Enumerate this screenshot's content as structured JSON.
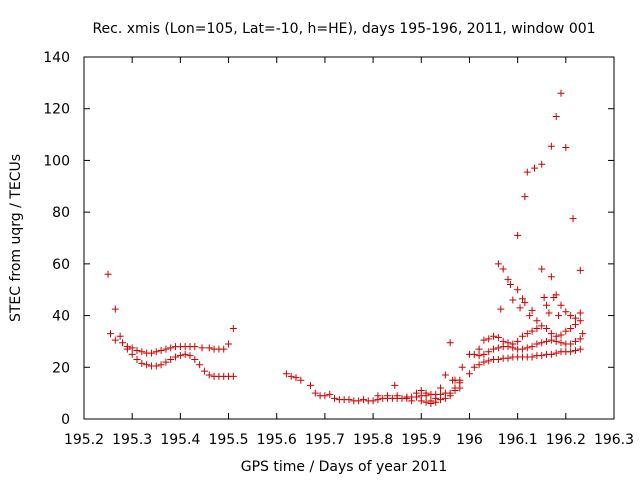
{
  "chart_data": {
    "type": "scatter",
    "title": "Rec. xmis (Lon=105, Lat=-10, h=HE), days 195-196, 2011, window 001",
    "xlabel": "GPS time / Days of year 2011",
    "ylabel": "STEC from uqrg / TECUs",
    "xlim": [
      195.2,
      196.3
    ],
    "ylim": [
      0,
      140
    ],
    "x_ticks": [
      "195.2",
      "195.3",
      "195.4",
      "195.5",
      "195.6",
      "195.7",
      "195.8",
      "195.9",
      "196",
      "196.1",
      "196.2",
      "196.3"
    ],
    "y_ticks": [
      "0",
      "20",
      "40",
      "60",
      "80",
      "100",
      "120",
      "140"
    ],
    "grid": false,
    "marker": "+",
    "color": "#cc0000",
    "series": [
      {
        "points": [
          [
            195.25,
            56
          ],
          [
            195.265,
            42.5
          ],
          [
            195.255,
            33
          ],
          [
            195.265,
            30.5
          ],
          [
            195.275,
            32
          ],
          [
            195.28,
            29.5
          ],
          [
            195.29,
            27
          ],
          [
            195.3,
            27.5
          ],
          [
            195.31,
            26.5
          ],
          [
            195.32,
            26
          ],
          [
            195.33,
            25.5
          ],
          [
            195.34,
            25.5
          ],
          [
            195.35,
            26
          ],
          [
            195.36,
            26.5
          ],
          [
            195.37,
            27
          ],
          [
            195.38,
            27.5
          ],
          [
            195.39,
            28
          ],
          [
            195.4,
            28
          ],
          [
            195.41,
            28
          ],
          [
            195.42,
            28
          ],
          [
            195.43,
            28
          ],
          [
            195.445,
            27.5
          ],
          [
            195.46,
            27.5
          ],
          [
            195.47,
            27
          ],
          [
            195.48,
            27
          ],
          [
            195.49,
            27
          ],
          [
            195.5,
            29
          ],
          [
            195.51,
            35
          ],
          [
            195.29,
            28
          ],
          [
            195.3,
            25
          ],
          [
            195.31,
            23
          ],
          [
            195.32,
            21.5
          ],
          [
            195.33,
            21
          ],
          [
            195.34,
            20.5
          ],
          [
            195.35,
            20.5
          ],
          [
            195.36,
            21
          ],
          [
            195.37,
            22
          ],
          [
            195.38,
            23
          ],
          [
            195.39,
            24
          ],
          [
            195.4,
            24.5
          ],
          [
            195.41,
            25
          ],
          [
            195.42,
            24.5
          ],
          [
            195.43,
            23
          ],
          [
            195.44,
            21
          ],
          [
            195.45,
            18.5
          ],
          [
            195.46,
            17
          ],
          [
            195.47,
            16.5
          ],
          [
            195.48,
            16.5
          ],
          [
            195.49,
            16.5
          ],
          [
            195.5,
            16.5
          ],
          [
            195.51,
            16.5
          ],
          [
            195.62,
            17.5
          ],
          [
            195.63,
            16.5
          ],
          [
            195.64,
            16
          ],
          [
            195.65,
            15
          ],
          [
            195.67,
            13
          ],
          [
            195.68,
            10
          ],
          [
            195.69,
            9
          ],
          [
            195.7,
            9
          ],
          [
            195.71,
            9.5
          ],
          [
            195.72,
            8
          ],
          [
            195.73,
            7.5
          ],
          [
            195.74,
            7.5
          ],
          [
            195.75,
            7.5
          ],
          [
            195.76,
            7
          ],
          [
            195.77,
            7
          ],
          [
            195.78,
            7.5
          ],
          [
            195.79,
            7
          ],
          [
            195.8,
            7
          ],
          [
            195.81,
            7.5
          ],
          [
            195.82,
            8
          ],
          [
            195.83,
            8
          ],
          [
            195.84,
            8
          ],
          [
            195.85,
            8
          ],
          [
            195.86,
            8
          ],
          [
            195.87,
            8.5
          ],
          [
            195.88,
            8.5
          ],
          [
            195.89,
            8.5
          ],
          [
            195.9,
            9
          ],
          [
            195.91,
            9
          ],
          [
            195.92,
            9.5
          ],
          [
            195.93,
            9.5
          ],
          [
            195.94,
            9.5
          ],
          [
            195.95,
            10
          ],
          [
            195.96,
            10
          ],
          [
            195.97,
            11
          ],
          [
            195.98,
            12
          ],
          [
            195.81,
            9
          ],
          [
            195.83,
            9
          ],
          [
            195.845,
            13
          ],
          [
            195.85,
            9
          ],
          [
            195.87,
            8
          ],
          [
            195.88,
            7
          ],
          [
            195.9,
            7
          ],
          [
            195.91,
            6.5
          ],
          [
            195.92,
            7
          ],
          [
            195.93,
            8
          ],
          [
            195.94,
            12
          ],
          [
            195.95,
            17
          ],
          [
            195.96,
            29.5
          ],
          [
            195.965,
            15
          ],
          [
            195.97,
            15
          ],
          [
            195.98,
            15
          ],
          [
            195.985,
            20
          ],
          [
            195.89,
            10
          ],
          [
            195.9,
            11
          ],
          [
            195.91,
            10
          ],
          [
            195.92,
            6
          ],
          [
            195.93,
            6.5
          ],
          [
            195.94,
            7.5
          ],
          [
            195.95,
            8
          ],
          [
            195.96,
            9
          ],
          [
            195.97,
            12
          ],
          [
            195.98,
            14
          ],
          [
            196.0,
            17.5
          ],
          [
            196.01,
            20
          ],
          [
            196.02,
            21
          ],
          [
            196.03,
            22
          ],
          [
            196.04,
            22.5
          ],
          [
            196.05,
            23
          ],
          [
            196.06,
            23
          ],
          [
            196.07,
            23.5
          ],
          [
            196.08,
            23.5
          ],
          [
            196.09,
            24
          ],
          [
            196.1,
            24
          ],
          [
            196.11,
            24
          ],
          [
            196.12,
            24
          ],
          [
            196.13,
            24
          ],
          [
            196.14,
            24.5
          ],
          [
            196.15,
            24.5
          ],
          [
            196.16,
            25
          ],
          [
            196.17,
            25
          ],
          [
            196.18,
            25.5
          ],
          [
            196.19,
            26
          ],
          [
            196.2,
            26
          ],
          [
            196.21,
            26
          ],
          [
            196.22,
            26.5
          ],
          [
            196.23,
            27
          ],
          [
            196.0,
            25
          ],
          [
            196.01,
            25
          ],
          [
            196.02,
            24.5
          ],
          [
            196.03,
            25
          ],
          [
            196.04,
            26
          ],
          [
            196.05,
            27
          ],
          [
            196.06,
            27.5
          ],
          [
            196.07,
            28
          ],
          [
            196.08,
            28
          ],
          [
            196.09,
            27.5
          ],
          [
            196.1,
            27
          ],
          [
            196.11,
            27
          ],
          [
            196.12,
            27.5
          ],
          [
            196.13,
            28
          ],
          [
            196.14,
            29
          ],
          [
            196.15,
            29.5
          ],
          [
            196.16,
            30
          ],
          [
            196.17,
            30.5
          ],
          [
            196.18,
            30
          ],
          [
            196.19,
            29.5
          ],
          [
            196.2,
            29
          ],
          [
            196.21,
            29
          ],
          [
            196.22,
            30
          ],
          [
            196.23,
            31
          ],
          [
            196.02,
            27
          ],
          [
            196.03,
            30.5
          ],
          [
            196.04,
            31
          ],
          [
            196.05,
            32
          ],
          [
            196.06,
            31.5
          ],
          [
            196.07,
            30
          ],
          [
            196.08,
            29.5
          ],
          [
            196.09,
            29
          ],
          [
            196.1,
            30
          ],
          [
            196.11,
            32
          ],
          [
            196.12,
            33
          ],
          [
            196.13,
            34
          ],
          [
            196.14,
            35
          ],
          [
            196.15,
            36
          ],
          [
            196.16,
            35
          ],
          [
            196.17,
            33
          ],
          [
            196.18,
            32
          ],
          [
            196.19,
            32.5
          ],
          [
            196.2,
            34
          ],
          [
            196.21,
            35
          ],
          [
            196.22,
            36.5
          ],
          [
            196.23,
            38
          ],
          [
            196.06,
            60
          ],
          [
            196.065,
            42.5
          ],
          [
            196.07,
            58
          ],
          [
            196.08,
            54
          ],
          [
            196.085,
            52
          ],
          [
            196.09,
            46
          ],
          [
            196.1,
            71
          ],
          [
            196.1,
            50
          ],
          [
            196.105,
            43
          ],
          [
            196.11,
            46.5
          ],
          [
            196.115,
            86
          ],
          [
            196.115,
            45
          ],
          [
            196.12,
            95.5
          ],
          [
            196.125,
            40
          ],
          [
            196.13,
            42
          ],
          [
            196.135,
            97
          ],
          [
            196.14,
            38
          ],
          [
            196.15,
            98.5
          ],
          [
            196.15,
            58
          ],
          [
            196.155,
            47
          ],
          [
            196.16,
            44
          ],
          [
            196.165,
            41
          ],
          [
            196.17,
            105.5
          ],
          [
            196.17,
            55
          ],
          [
            196.175,
            47
          ],
          [
            196.18,
            117
          ],
          [
            196.18,
            48
          ],
          [
            196.185,
            40
          ],
          [
            196.19,
            126
          ],
          [
            196.19,
            44
          ],
          [
            196.2,
            105
          ],
          [
            196.2,
            41.5
          ],
          [
            196.21,
            40
          ],
          [
            196.215,
            77.5
          ],
          [
            196.22,
            39
          ],
          [
            196.23,
            57.5
          ],
          [
            196.23,
            41
          ],
          [
            196.235,
            33
          ]
        ]
      }
    ]
  }
}
